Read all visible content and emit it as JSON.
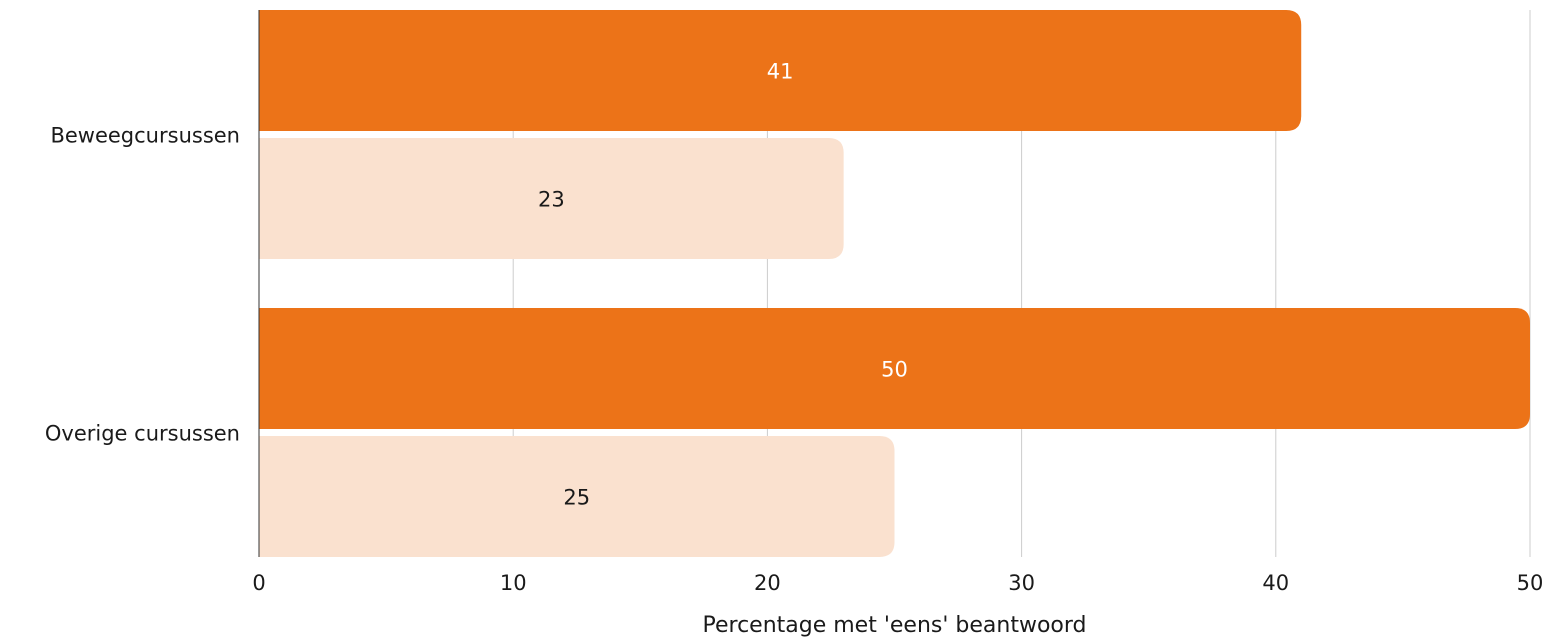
{
  "chart_data": {
    "type": "bar",
    "orientation": "horizontal",
    "categories": [
      "Beweegcursussen",
      "Overige cursussen"
    ],
    "series": [
      {
        "values": [
          41,
          50
        ],
        "color": "#EC7318",
        "label_color": "#ffffff"
      },
      {
        "values": [
          23,
          25
        ],
        "color": "#FAE1CF",
        "label_color": "#1a1a1a"
      }
    ],
    "xlim": [
      0,
      50
    ],
    "xticks": [
      0,
      10,
      20,
      30,
      40,
      50
    ],
    "xlabel": "Percentage met 'eens' beantwoord",
    "ylabel": "",
    "title": "",
    "grid": true,
    "gridline_color": "#cccccc"
  }
}
